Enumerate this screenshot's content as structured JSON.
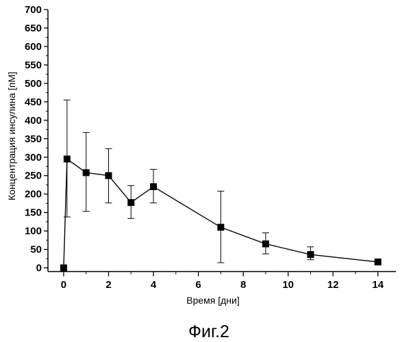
{
  "figure": {
    "caption": "Фиг.2"
  },
  "chart_data": {
    "type": "line",
    "xlabel": "Время [дни]",
    "ylabel": "Концентрация инсулина [пМ]",
    "xlim": [
      -0.7,
      14.8
    ],
    "ylim": [
      -10,
      700
    ],
    "x_ticks": [
      0,
      2,
      4,
      6,
      8,
      10,
      12,
      14
    ],
    "y_ticks": [
      0,
      50,
      100,
      150,
      200,
      250,
      300,
      350,
      400,
      450,
      500,
      550,
      600,
      650,
      700
    ],
    "grid": false,
    "legend": "none",
    "marker": "square",
    "error_bars": true,
    "series": [
      {
        "points": [
          {
            "x": 0,
            "y": 0,
            "err_low": 0,
            "err_high": 0
          },
          {
            "x": 0.15,
            "y": 295,
            "err_low": 138,
            "err_high": 455
          },
          {
            "x": 1,
            "y": 258,
            "err_low": 153,
            "err_high": 367
          },
          {
            "x": 2,
            "y": 250,
            "err_low": 176,
            "err_high": 323
          },
          {
            "x": 3,
            "y": 177,
            "err_low": 134,
            "err_high": 223
          },
          {
            "x": 4,
            "y": 220,
            "err_low": 176,
            "err_high": 267
          },
          {
            "x": 7,
            "y": 110,
            "err_low": 14,
            "err_high": 208
          },
          {
            "x": 9,
            "y": 65,
            "err_low": 38,
            "err_high": 95
          },
          {
            "x": 11,
            "y": 36,
            "err_low": 22,
            "err_high": 57
          },
          {
            "x": 14,
            "y": 16,
            "err_low": 12,
            "err_high": 20
          }
        ]
      }
    ]
  }
}
